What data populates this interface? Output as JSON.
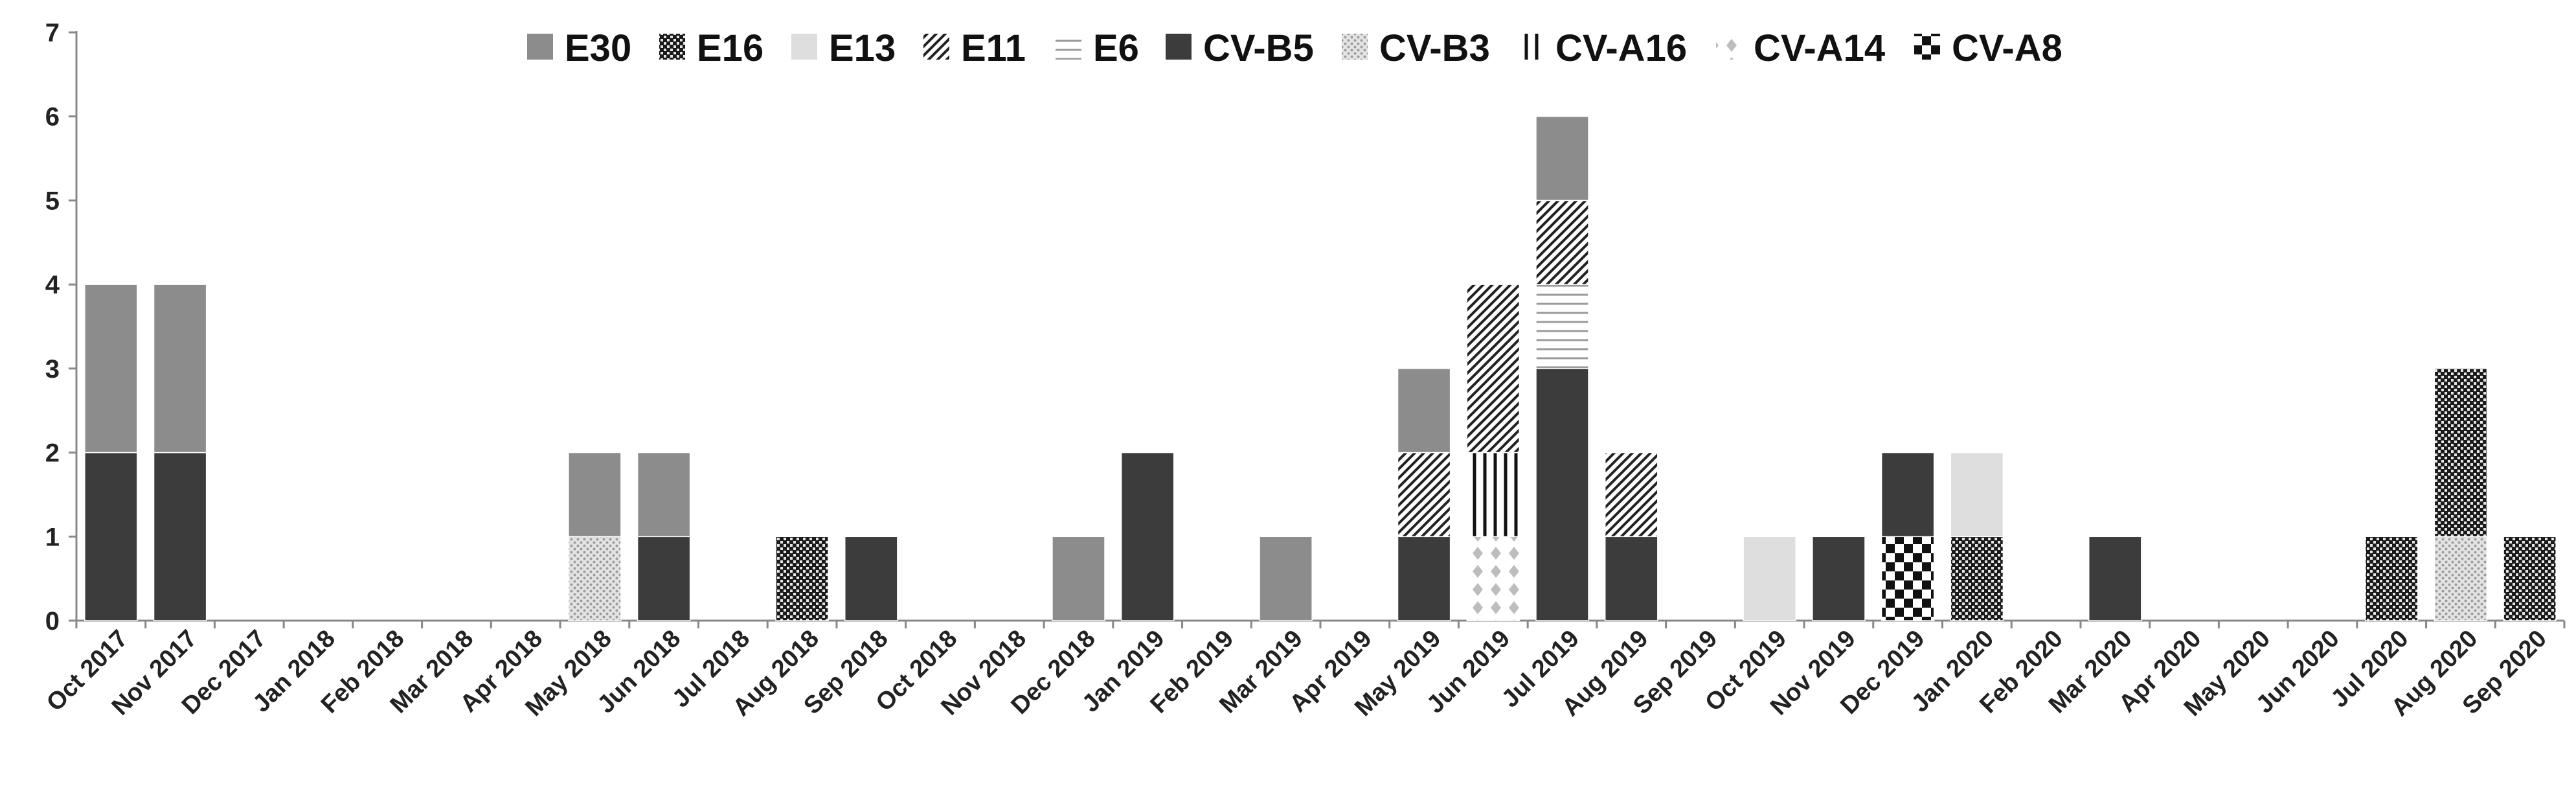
{
  "chart_data": {
    "type": "bar",
    "stacked": true,
    "title": "",
    "xlabel": "",
    "ylabel": "",
    "ylim": [
      0,
      7
    ],
    "yticks": [
      0,
      1,
      2,
      3,
      4,
      5,
      6,
      7
    ],
    "grid": false,
    "legend_position": "top-center",
    "categories": [
      "Oct 2017",
      "Nov 2017",
      "Dec 2017",
      "Jan 2018",
      "Feb 2018",
      "Mar 2018",
      "Apr 2018",
      "May 2018",
      "Jun 2018",
      "Jul 2018",
      "Aug 2018",
      "Sep 2018",
      "Oct 2018",
      "Nov 2018",
      "Dec 2018",
      "Jan 2019",
      "Feb 2019",
      "Mar 2019",
      "Apr 2019",
      "May 2019",
      "Jun 2019",
      "Jul 2019",
      "Aug 2019",
      "Sep 2019",
      "Oct 2019",
      "Nov 2019",
      "Dec 2019",
      "Jan 2020",
      "Feb 2020",
      "Mar 2020",
      "Apr 2020",
      "May 2020",
      "Jun 2020",
      "Jul 2020",
      "Aug 2020",
      "Sep 2020"
    ],
    "stack_order": [
      "CV-A8",
      "CV-A14",
      "CV-B3",
      "CV-B5",
      "E16",
      "E13",
      "CV-A16",
      "E6",
      "E11",
      "E30"
    ],
    "series": [
      {
        "name": "E30",
        "pattern": "solid-gray",
        "values": [
          2,
          2,
          0,
          0,
          0,
          0,
          0,
          1,
          1,
          0,
          0,
          0,
          0,
          0,
          1,
          0,
          0,
          1,
          0,
          1,
          0,
          1,
          0,
          0,
          0,
          0,
          0,
          0,
          0,
          0,
          0,
          0,
          0,
          0,
          0,
          0
        ]
      },
      {
        "name": "E16",
        "pattern": "dense-dots",
        "values": [
          0,
          0,
          0,
          0,
          0,
          0,
          0,
          0,
          0,
          0,
          1,
          0,
          0,
          0,
          0,
          0,
          0,
          0,
          0,
          0,
          0,
          0,
          0,
          0,
          0,
          0,
          0,
          1,
          0,
          0,
          0,
          0,
          0,
          1,
          2,
          1
        ]
      },
      {
        "name": "E13",
        "pattern": "light-solid",
        "values": [
          0,
          0,
          0,
          0,
          0,
          0,
          0,
          0,
          0,
          0,
          0,
          0,
          0,
          0,
          0,
          0,
          0,
          0,
          0,
          0,
          0,
          0,
          0,
          0,
          1,
          0,
          0,
          1,
          0,
          0,
          0,
          0,
          0,
          0,
          0,
          0
        ]
      },
      {
        "name": "E11",
        "pattern": "diagonal",
        "values": [
          0,
          0,
          0,
          0,
          0,
          0,
          0,
          0,
          0,
          0,
          0,
          0,
          0,
          0,
          0,
          0,
          0,
          0,
          0,
          1,
          2,
          1,
          1,
          0,
          0,
          0,
          0,
          0,
          0,
          0,
          0,
          0,
          0,
          0,
          0,
          0
        ]
      },
      {
        "name": "E6",
        "pattern": "horizontal",
        "values": [
          0,
          0,
          0,
          0,
          0,
          0,
          0,
          0,
          0,
          0,
          0,
          0,
          0,
          0,
          0,
          0,
          0,
          0,
          0,
          0,
          0,
          1,
          0,
          0,
          0,
          0,
          0,
          0,
          0,
          0,
          0,
          0,
          0,
          0,
          0,
          0
        ]
      },
      {
        "name": "CV-B5",
        "pattern": "solid-dark",
        "values": [
          2,
          2,
          0,
          0,
          0,
          0,
          0,
          0,
          1,
          0,
          0,
          1,
          0,
          0,
          0,
          2,
          0,
          0,
          0,
          1,
          0,
          3,
          1,
          0,
          0,
          1,
          1,
          0,
          0,
          1,
          0,
          0,
          0,
          0,
          0,
          0
        ]
      },
      {
        "name": "CV-B3",
        "pattern": "light-dots",
        "values": [
          0,
          0,
          0,
          0,
          0,
          0,
          0,
          1,
          0,
          0,
          0,
          0,
          0,
          0,
          0,
          0,
          0,
          0,
          0,
          0,
          0,
          0,
          0,
          0,
          0,
          0,
          0,
          0,
          0,
          0,
          0,
          0,
          0,
          0,
          1,
          0
        ]
      },
      {
        "name": "CV-A16",
        "pattern": "vertical",
        "values": [
          0,
          0,
          0,
          0,
          0,
          0,
          0,
          0,
          0,
          0,
          0,
          0,
          0,
          0,
          0,
          0,
          0,
          0,
          0,
          0,
          1,
          0,
          0,
          0,
          0,
          0,
          0,
          0,
          0,
          0,
          0,
          0,
          0,
          0,
          0,
          0
        ]
      },
      {
        "name": "CV-A14",
        "pattern": "diamonds",
        "values": [
          0,
          0,
          0,
          0,
          0,
          0,
          0,
          0,
          0,
          0,
          0,
          0,
          0,
          0,
          0,
          0,
          0,
          0,
          0,
          0,
          1,
          0,
          0,
          0,
          0,
          0,
          0,
          0,
          0,
          0,
          0,
          0,
          0,
          0,
          0,
          0
        ]
      },
      {
        "name": "CV-A8",
        "pattern": "checker",
        "values": [
          0,
          0,
          0,
          0,
          0,
          0,
          0,
          0,
          0,
          0,
          0,
          0,
          0,
          0,
          0,
          0,
          0,
          0,
          0,
          0,
          0,
          0,
          0,
          0,
          0,
          0,
          1,
          0,
          0,
          0,
          0,
          0,
          0,
          0,
          0,
          0
        ]
      }
    ],
    "colors": {
      "solid_gray": "#8c8c8c",
      "solid_dark": "#3c3c3c",
      "light_solid": "#dedede",
      "light_dots": "#c8c8c8",
      "axis": "#888888",
      "text": "#222222"
    }
  }
}
